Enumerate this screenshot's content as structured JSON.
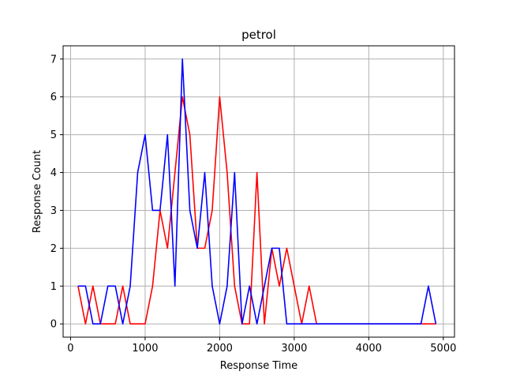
{
  "chart_data": {
    "type": "line",
    "title": "petrol",
    "xlabel": "Response Time",
    "ylabel": "Response Count",
    "xlim": [
      -100,
      5150
    ],
    "ylim": [
      -0.35,
      7.35
    ],
    "xticks": [
      0,
      1000,
      2000,
      3000,
      4000,
      5000
    ],
    "yticks": [
      0,
      1,
      2,
      3,
      4,
      5,
      6,
      7
    ],
    "grid": true,
    "x": [
      100,
      200,
      300,
      400,
      500,
      600,
      700,
      800,
      900,
      1000,
      1100,
      1200,
      1300,
      1400,
      1500,
      1600,
      1700,
      1800,
      1900,
      2000,
      2100,
      2200,
      2300,
      2400,
      2500,
      2600,
      2700,
      2800,
      2900,
      3000,
      3100,
      3200,
      3300,
      3400,
      3500,
      3600,
      3700,
      3800,
      3900,
      4000,
      4100,
      4200,
      4300,
      4400,
      4500,
      4600,
      4700,
      4800,
      4900
    ],
    "series": [
      {
        "color": "#ff0000",
        "values": [
          1,
          0,
          1,
          0,
          0,
          0,
          1,
          0,
          0,
          0,
          1,
          3,
          2,
          4,
          6,
          5,
          2,
          2,
          3,
          6,
          4,
          1,
          0,
          0,
          4,
          0,
          2,
          1,
          2,
          1,
          0,
          1,
          0,
          0,
          0,
          0,
          0,
          0,
          0,
          0,
          0,
          0,
          0,
          0,
          0,
          0,
          0,
          0,
          0
        ]
      },
      {
        "color": "#0000ff",
        "values": [
          1,
          1,
          0,
          0,
          1,
          1,
          0,
          1,
          4,
          5,
          3,
          3,
          5,
          1,
          7,
          3,
          2,
          4,
          1,
          0,
          1,
          4,
          0,
          1,
          0,
          1,
          2,
          2,
          0,
          0,
          0,
          0,
          0,
          0,
          0,
          0,
          0,
          0,
          0,
          0,
          0,
          0,
          0,
          0,
          0,
          0,
          0,
          1,
          0
        ]
      }
    ]
  }
}
